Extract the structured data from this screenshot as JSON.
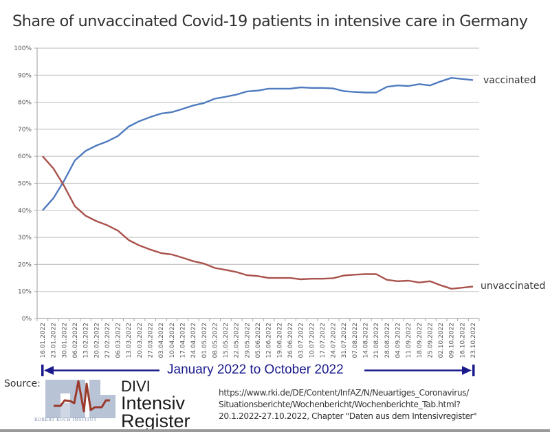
{
  "title": "Share of unvaccinated Covid-19 patients in intensive care in Germany",
  "period_label": "January 2022 to October 2022",
  "source": {
    "label": "Source:",
    "logo_rki_text": "ROBERT KOCH INSTITUT",
    "logo_divi_lines": [
      "DIVI",
      "Intensiv",
      "Register"
    ],
    "reference_lines": [
      "https://www.rki.de/DE/Content/InfAZ/N/Neuartiges_Coronavirus/",
      "Situationsberichte/Wochenbericht/Wochenberichte_Tab.html?",
      "20.1.2022-27.10.2022, Chapter \"Daten aus dem Intensivregister\""
    ]
  },
  "colors": {
    "vaccinated": "#4f7bbf",
    "unvaccinated": "#a9524c",
    "grid": "#c8c8c8",
    "period_arrow": "#1a1a8c"
  },
  "chart_data": {
    "type": "line",
    "title": "Share of unvaccinated Covid-19 patients in intensive care in Germany",
    "xlabel": "",
    "ylabel": "",
    "ylim": [
      0,
      100
    ],
    "yticks": [
      "0%",
      "10%",
      "20%",
      "30%",
      "40%",
      "50%",
      "60%",
      "70%",
      "80%",
      "90%",
      "100%"
    ],
    "grid": true,
    "legend": "inline-right",
    "x": [
      "16.01.2022",
      "23.01.2022",
      "30.01.2022",
      "06.02.2022",
      "13.02.2022",
      "20.02.2022",
      "27.02.2022",
      "06.03.2022",
      "13.03.2022",
      "20.03.2022",
      "27.03.2022",
      "03.04.2022",
      "10.04.2022",
      "17.04.2022",
      "24.04.2022",
      "01.05.2022",
      "08.05.2022",
      "15.05.2022",
      "22.05.2022",
      "29.05.2022",
      "05.06.2022",
      "12.06.2022",
      "19.06.2022",
      "26.06.2022",
      "03.07.2022",
      "10.07.2022",
      "17.07.2022",
      "24.07.2022",
      "31.07.2022",
      "07.08.2022",
      "14.08.2022",
      "21.08.2022",
      "28.08.2022",
      "04.09.2022",
      "11.09.2022",
      "18.09.2022",
      "25.09.2022",
      "02.10.2022",
      "09.10.2022",
      "16.10.2022",
      "23.10.2022"
    ],
    "series": [
      {
        "name": "vaccinated",
        "values": [
          40.0,
          44.5,
          51.0,
          58.5,
          62.0,
          64.0,
          65.5,
          67.5,
          71.0,
          73.0,
          74.5,
          75.8,
          76.3,
          77.5,
          78.8,
          79.7,
          81.3,
          82.0,
          82.8,
          84.0,
          84.3,
          85.0,
          85.0,
          85.0,
          85.5,
          85.3,
          85.3,
          85.1,
          84.1,
          83.8,
          83.6,
          83.6,
          85.7,
          86.2,
          86.0,
          86.7,
          86.2,
          87.7,
          89.0,
          88.6,
          88.2
        ]
      },
      {
        "name": "unvaccinated",
        "values": [
          60.0,
          55.5,
          49.0,
          41.5,
          38.0,
          36.0,
          34.5,
          32.5,
          29.0,
          27.0,
          25.5,
          24.2,
          23.7,
          22.5,
          21.2,
          20.3,
          18.7,
          18.0,
          17.2,
          16.0,
          15.7,
          15.0,
          15.0,
          15.0,
          14.5,
          14.7,
          14.7,
          14.9,
          15.9,
          16.2,
          16.4,
          16.4,
          14.3,
          13.8,
          14.0,
          13.3,
          13.8,
          12.3,
          11.0,
          11.4,
          11.8
        ]
      }
    ]
  }
}
